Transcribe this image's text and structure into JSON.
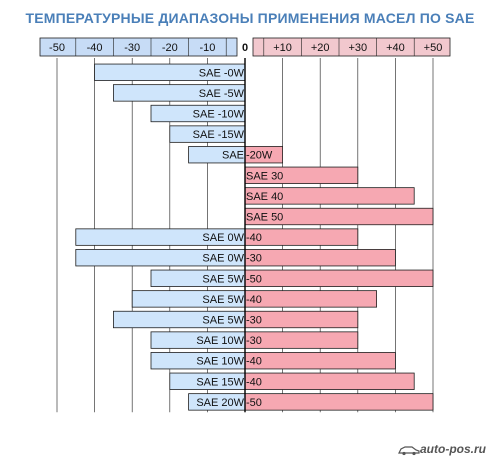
{
  "chart_data": {
    "type": "bar",
    "title": "ТЕМПЕРАТУРНЫЕ ДИАПАЗОНЫ ПРИМЕНЕНИЯ МАСЕЛ ПО SAE",
    "x_ticks": [
      "-50",
      "-40",
      "-30",
      "-20",
      "-10",
      "0",
      "+10",
      "+20",
      "+30",
      "+40",
      "+50"
    ],
    "x_tick_values": [
      -50,
      -40,
      -30,
      -20,
      -10,
      0,
      10,
      20,
      30,
      40,
      50
    ],
    "xlim": [
      -50,
      50
    ],
    "grid": true,
    "unit": "°C",
    "colors": {
      "cold": "#cfe5fb",
      "warm": "#f6a8b2",
      "outline": "#1f1f1f",
      "title": "#4a7fb8",
      "axis_cold_bg": "#c7dcf6",
      "axis_warm_bg": "#f2c8ce"
    },
    "bars": [
      {
        "label_left": "SAE -0W",
        "label_right": "",
        "min": -40,
        "max": 0
      },
      {
        "label_left": "SAE -5W",
        "label_right": "",
        "min": -35,
        "max": 0
      },
      {
        "label_left": "SAE -10W",
        "label_right": "",
        "min": -25,
        "max": 0
      },
      {
        "label_left": "SAE -15W",
        "label_right": "",
        "min": -20,
        "max": 0
      },
      {
        "label_left": "SAE",
        "label_right": "-20W",
        "min": -15,
        "max": 10
      },
      {
        "label_left": "",
        "label_right": "SAE 30",
        "min": 0,
        "max": 30
      },
      {
        "label_left": "",
        "label_right": "SAE 40",
        "min": 0,
        "max": 45
      },
      {
        "label_left": "",
        "label_right": "SAE 50",
        "min": 0,
        "max": 50
      },
      {
        "label_left": "SAE 0W",
        "label_right": "-40",
        "min": -45,
        "max": 30
      },
      {
        "label_left": "SAE 0W",
        "label_right": "-30",
        "min": -45,
        "max": 40
      },
      {
        "label_left": "SAE 5W",
        "label_right": "-50",
        "min": -25,
        "max": 50
      },
      {
        "label_left": "SAE 5W",
        "label_right": "-40",
        "min": -30,
        "max": 35
      },
      {
        "label_left": "SAE 5W",
        "label_right": "-30",
        "min": -35,
        "max": 30
      },
      {
        "label_left": "SAE 10W",
        "label_right": "-30",
        "min": -25,
        "max": 30
      },
      {
        "label_left": "SAE 10W",
        "label_right": "-40",
        "min": -25,
        "max": 40
      },
      {
        "label_left": "SAE 15W",
        "label_right": "-40",
        "min": -20,
        "max": 45
      },
      {
        "label_left": "SAE 20W",
        "label_right": "-50",
        "min": -15,
        "max": 50
      }
    ]
  },
  "source": {
    "logo_text": "auto-pos.ru",
    "logo_icon": "car-icon"
  }
}
